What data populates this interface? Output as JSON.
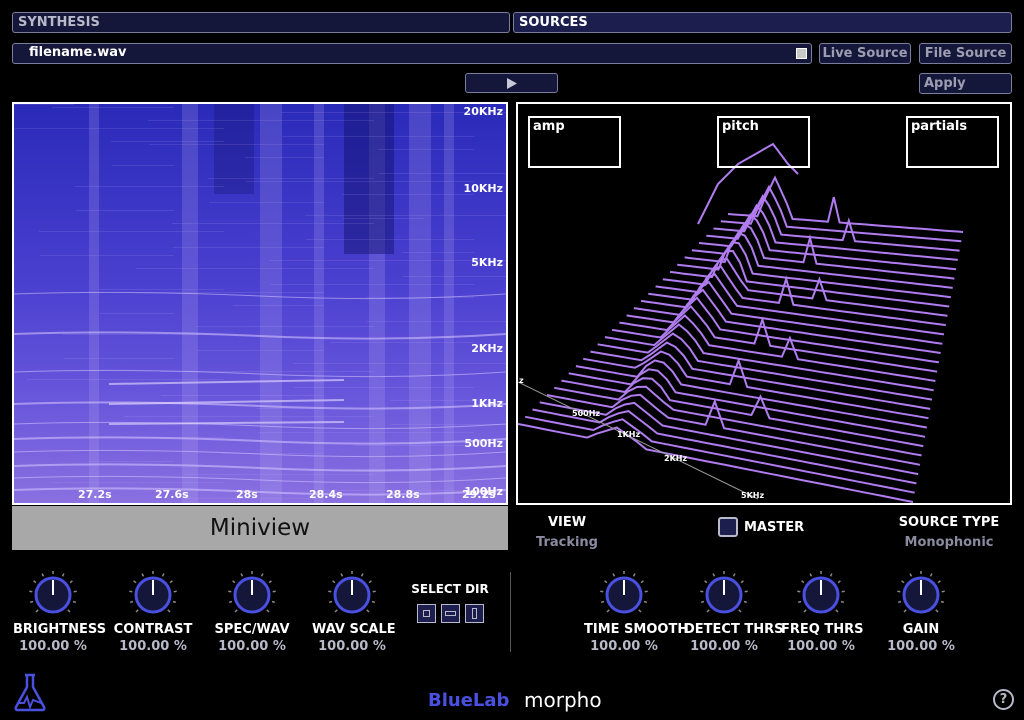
{
  "header": {
    "synthesis_tab": "SYNTHESIS",
    "sources_tab": "SOURCES"
  },
  "file": {
    "name": "filename.wav",
    "live_source": "Live Source",
    "file_source": "File Source",
    "apply": "Apply"
  },
  "spectrogram": {
    "freq_labels": [
      "20KHz",
      "10KHz",
      "5KHz",
      "2KHz",
      "1KHz",
      "500Hz",
      "100Hz"
    ],
    "time_labels": [
      "27.2s",
      "27.6s",
      "28s",
      "28.4s",
      "28.8s",
      "29.2s"
    ]
  },
  "miniview": {
    "label": "Miniview"
  },
  "view3d": {
    "boxes": [
      "amp",
      "pitch",
      "partials"
    ],
    "axis_labels": [
      "z",
      "500Hz",
      "1KHz",
      "2KHz",
      "5KHz"
    ]
  },
  "controls": {
    "view": {
      "title": "VIEW",
      "value": "Tracking"
    },
    "master": {
      "label": "MASTER"
    },
    "source_type": {
      "title": "SOURCE TYPE",
      "value": "Monophonic"
    },
    "select_dir": {
      "title": "SELECT DIR"
    }
  },
  "knobs_left": [
    {
      "label": "BRIGHTNESS",
      "value": "100.00 %"
    },
    {
      "label": "CONTRAST",
      "value": "100.00 %"
    },
    {
      "label": "SPEC/WAV",
      "value": "100.00 %"
    },
    {
      "label": "WAV SCALE",
      "value": "100.00 %"
    }
  ],
  "knobs_right": [
    {
      "label": "TIME SMOOTH",
      "value": "100.00 %"
    },
    {
      "label": "DETECT THRS",
      "value": "100.00 %"
    },
    {
      "label": "FREQ THRS",
      "value": "100.00 %"
    },
    {
      "label": "GAIN",
      "value": "100.00 %"
    }
  ],
  "footer": {
    "brand": "BlueLab",
    "product": "morpho",
    "help": "?"
  },
  "colors": {
    "accent": "#4a50e0",
    "panel": "#15173a",
    "spectro_bg": "#3a32c8",
    "waterfall": "#b07cf0"
  }
}
